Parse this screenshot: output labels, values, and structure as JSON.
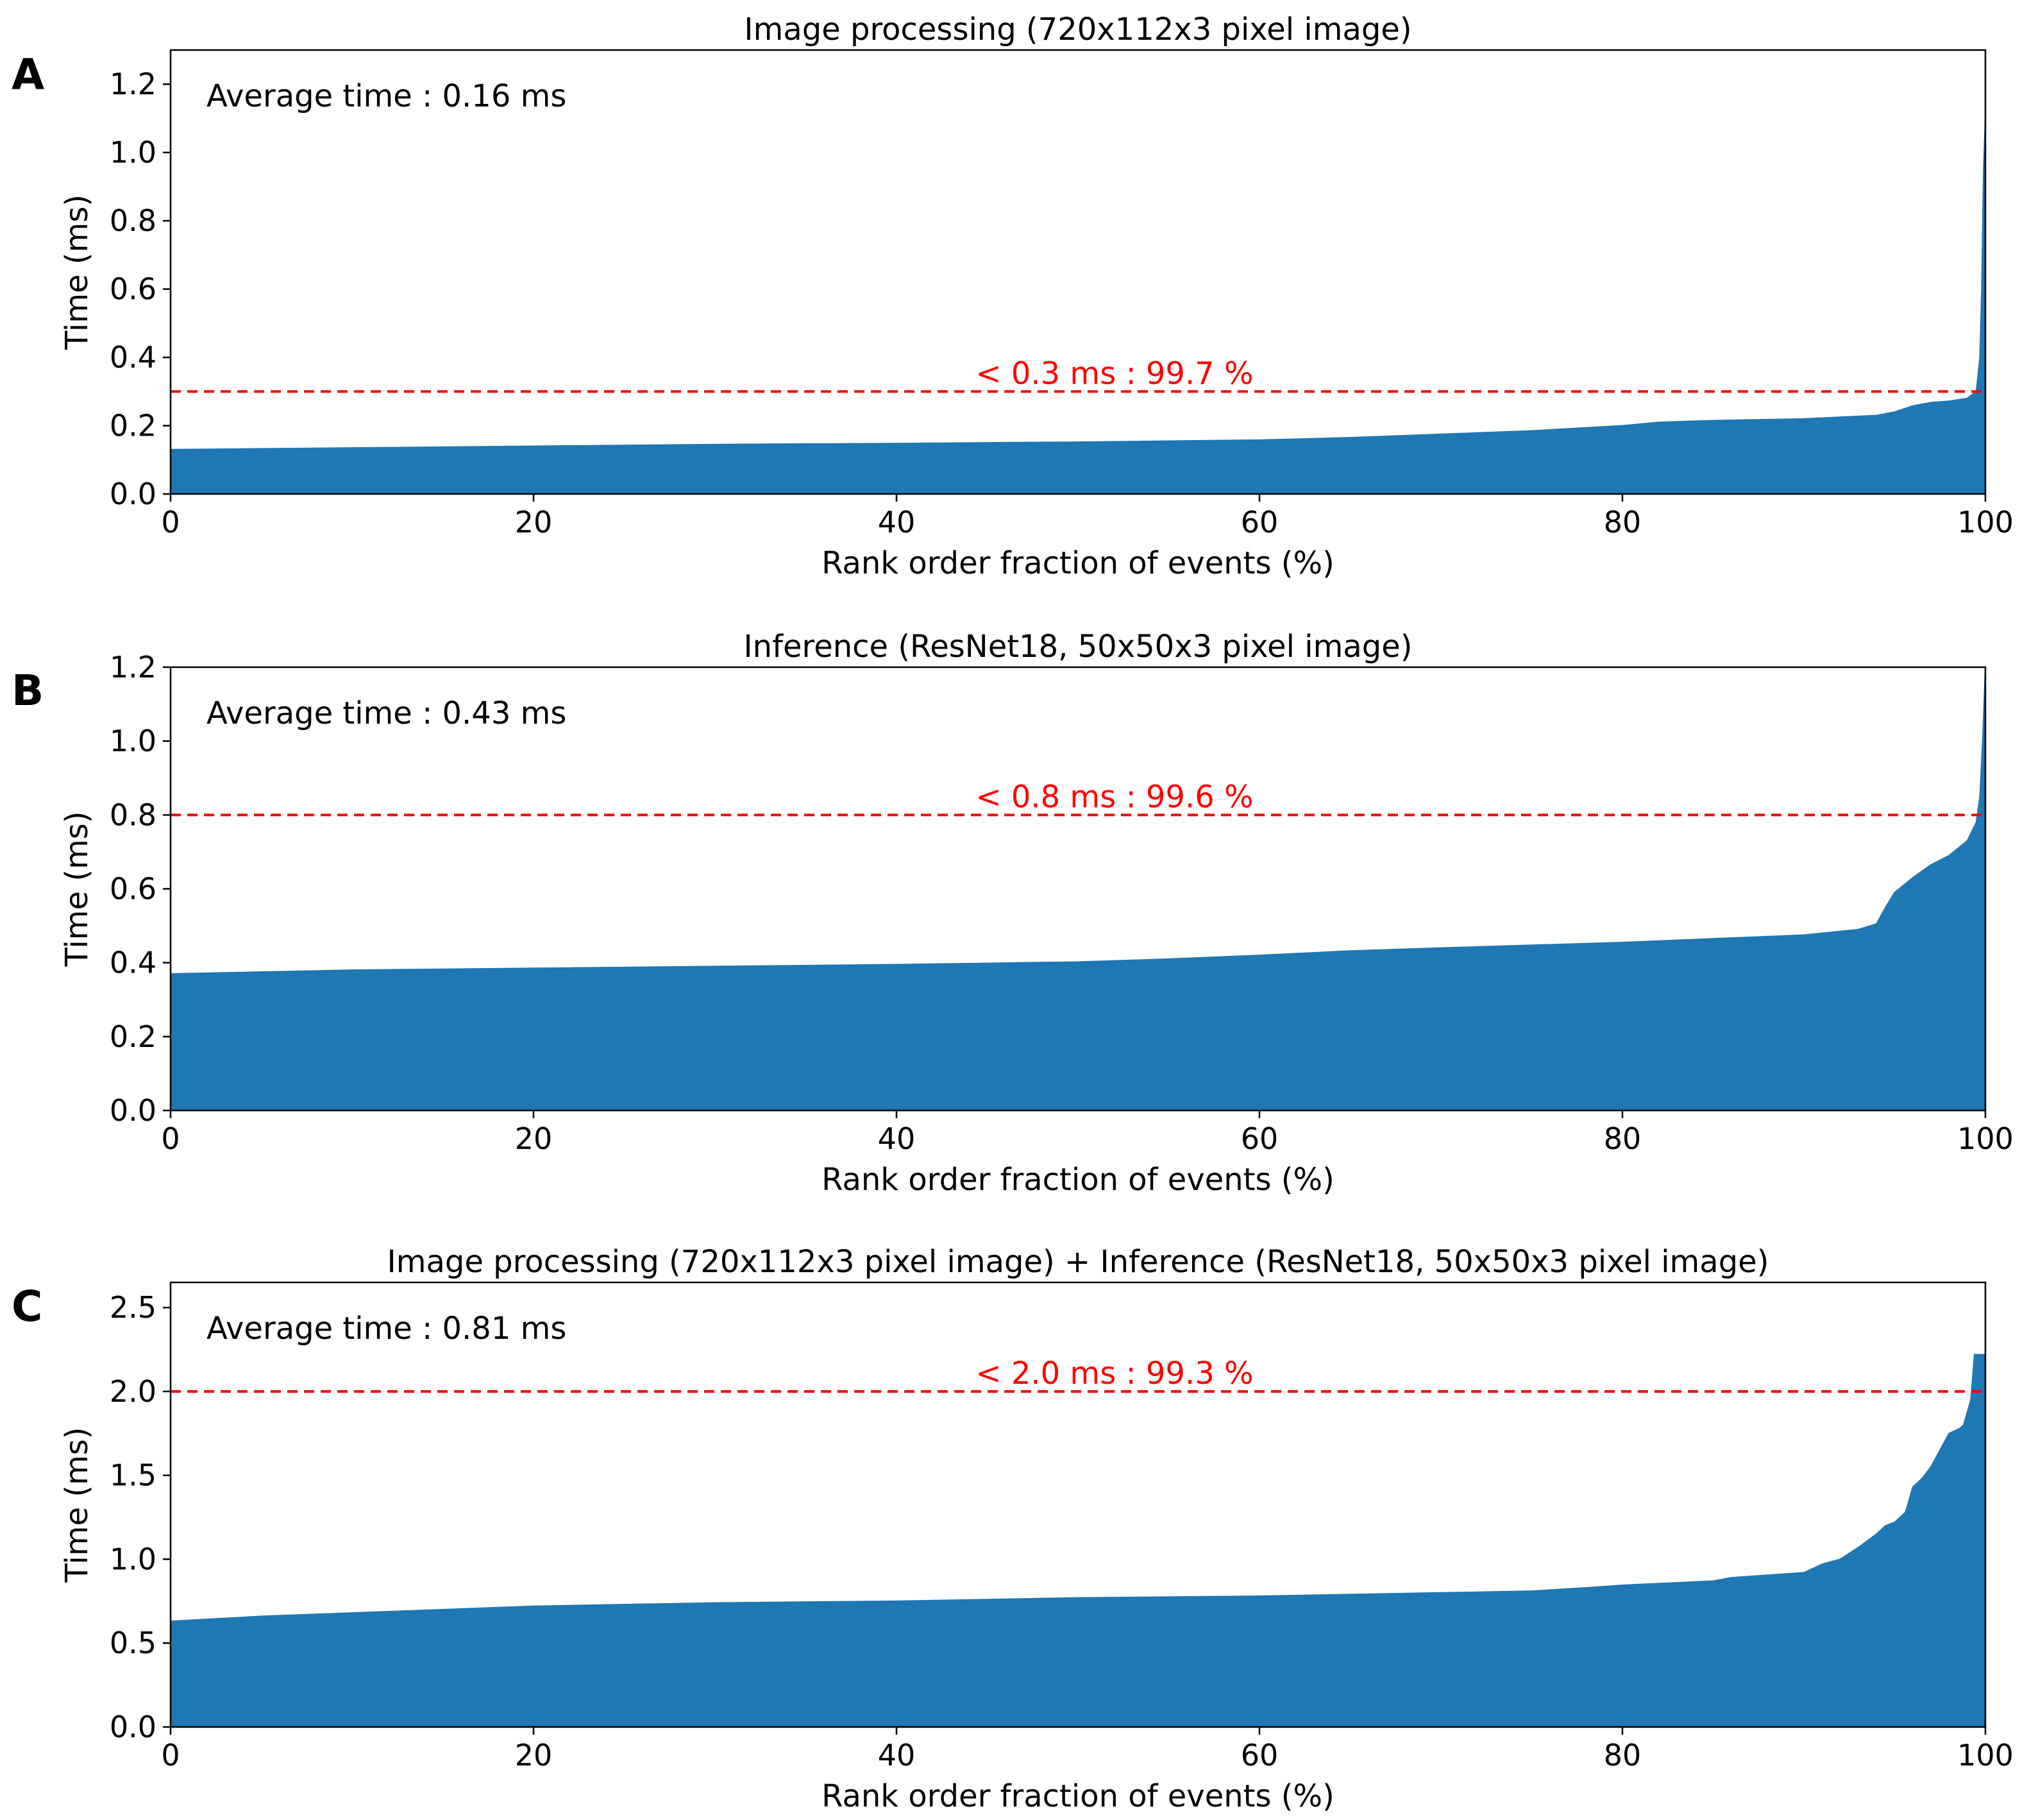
{
  "figure": {
    "fill_color": "#1f77b4",
    "threshold_color": "#ff0000"
  },
  "chart_data": [
    {
      "panel_letter": "A",
      "type": "area",
      "title": "Image processing (720x112x3 pixel image)",
      "xlabel": "Rank order fraction of events (%)",
      "ylabel": "Time (ms)",
      "xlim": [
        0,
        100
      ],
      "ylim": [
        0,
        1.3
      ],
      "xticks": [
        0,
        20,
        40,
        60,
        80,
        100
      ],
      "yticks": [
        0.0,
        0.2,
        0.4,
        0.6,
        0.8,
        1.0,
        1.2
      ],
      "ytick_labels": [
        "0.0",
        "0.2",
        "0.4",
        "0.6",
        "0.8",
        "1.0",
        "1.2"
      ],
      "grid": false,
      "average_text": "Average time : 0.16 ms",
      "threshold": 0.3,
      "threshold_text": "< 0.3 ms : 99.7 %",
      "series": [
        {
          "name": "Image processing",
          "x": [
            0,
            10,
            20,
            30,
            40,
            50,
            60,
            65,
            70,
            75,
            80,
            82,
            85,
            90,
            94,
            95,
            96,
            97,
            98,
            99,
            99.5,
            99.7,
            99.8,
            99.9,
            100
          ],
          "y": [
            0.13,
            0.135,
            0.14,
            0.145,
            0.148,
            0.152,
            0.158,
            0.165,
            0.175,
            0.185,
            0.2,
            0.21,
            0.215,
            0.22,
            0.23,
            0.24,
            0.258,
            0.268,
            0.272,
            0.28,
            0.3,
            0.4,
            0.6,
            0.95,
            1.1
          ]
        }
      ]
    },
    {
      "panel_letter": "B",
      "type": "area",
      "title": "Inference (ResNet18, 50x50x3 pixel image)",
      "xlabel": "Rank order fraction of events (%)",
      "ylabel": "Time (ms)",
      "xlim": [
        0,
        100
      ],
      "ylim": [
        0,
        1.2
      ],
      "xticks": [
        0,
        20,
        40,
        60,
        80,
        100
      ],
      "yticks": [
        0.0,
        0.2,
        0.4,
        0.6,
        0.8,
        1.0,
        1.2
      ],
      "ytick_labels": [
        "0.0",
        "0.2",
        "0.4",
        "0.6",
        "0.8",
        "1.0",
        "1.2"
      ],
      "grid": false,
      "average_text": "Average time : 0.43 ms",
      "threshold": 0.8,
      "threshold_text": "< 0.8 ms : 99.6 %",
      "series": [
        {
          "name": "Inference",
          "x": [
            0,
            10,
            20,
            30,
            40,
            50,
            55,
            60,
            65,
            70,
            80,
            90,
            93,
            94,
            94.5,
            95,
            96,
            97,
            98,
            99,
            99.5,
            99.7,
            99.85,
            100
          ],
          "y": [
            0.37,
            0.38,
            0.385,
            0.39,
            0.395,
            0.402,
            0.41,
            0.42,
            0.432,
            0.44,
            0.455,
            0.475,
            0.49,
            0.505,
            0.55,
            0.59,
            0.63,
            0.665,
            0.69,
            0.73,
            0.78,
            0.85,
            1.0,
            1.2
          ]
        }
      ]
    },
    {
      "panel_letter": "C",
      "type": "area",
      "title": "Image processing (720x112x3 pixel image) + Inference (ResNet18, 50x50x3 pixel image)",
      "xlabel": "Rank order fraction of events (%)",
      "ylabel": "Time (ms)",
      "xlim": [
        0,
        100
      ],
      "ylim": [
        0,
        2.65
      ],
      "xticks": [
        0,
        20,
        40,
        60,
        80,
        100
      ],
      "yticks": [
        0.0,
        0.5,
        1.0,
        1.5,
        2.0,
        2.5
      ],
      "ytick_labels": [
        "0.0",
        "0.5",
        "1.0",
        "1.5",
        "2.0",
        "2.5"
      ],
      "grid": false,
      "average_text": "Average time : 0.81 ms",
      "threshold": 2.0,
      "threshold_text": "< 2.0 ms : 99.3 %",
      "series": [
        {
          "name": "Image processing + Inference",
          "x": [
            0,
            5,
            10,
            15,
            20,
            30,
            40,
            50,
            60,
            65,
            70,
            75,
            78,
            80,
            85,
            86,
            90,
            91,
            92,
            93,
            94,
            94.5,
            95,
            95.6,
            96,
            96.5,
            97,
            97.5,
            98,
            98.6,
            98.8,
            99.2,
            99.4,
            99.7,
            100
          ],
          "y": [
            0.63,
            0.66,
            0.68,
            0.7,
            0.72,
            0.74,
            0.75,
            0.77,
            0.78,
            0.79,
            0.8,
            0.81,
            0.83,
            0.845,
            0.87,
            0.89,
            0.92,
            0.97,
            1.0,
            1.07,
            1.15,
            1.2,
            1.22,
            1.28,
            1.43,
            1.48,
            1.55,
            1.65,
            1.75,
            1.78,
            1.8,
            1.95,
            2.22,
            2.22,
            2.22
          ]
        }
      ]
    }
  ]
}
